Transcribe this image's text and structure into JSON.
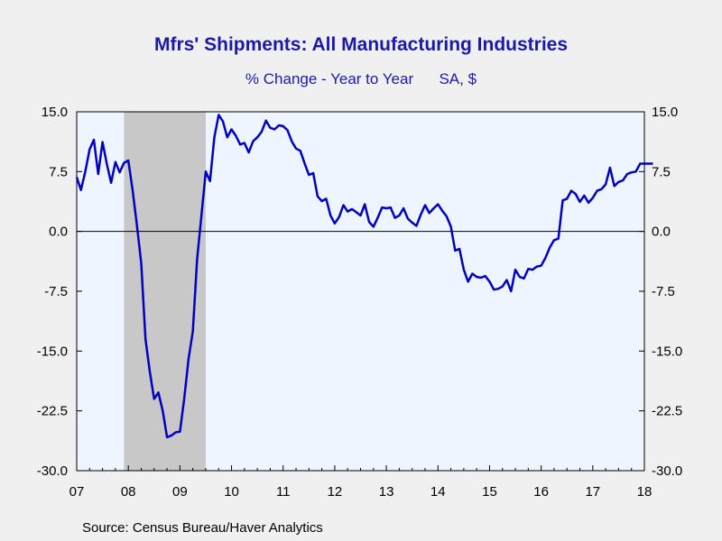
{
  "chart_data": {
    "type": "line",
    "title": "Mfrs' Shipments: All Manufacturing Industries",
    "subtitle_left": "% Change - Year to Year",
    "subtitle_right": "SA, $",
    "source": "Source:  Census Bureau/Haver Analytics",
    "ylim": [
      -30,
      15
    ],
    "yticks": [
      15,
      7.5,
      0,
      -7.5,
      -15,
      -22.5,
      -30
    ],
    "ytick_labels": [
      "15.0",
      "7.5",
      "0.0",
      "-7.5",
      "-15.0",
      "-22.5",
      "-30.0"
    ],
    "xlim": [
      2007,
      2018
    ],
    "xtick_labels": [
      "07",
      "08",
      "09",
      "10",
      "11",
      "12",
      "13",
      "14",
      "15",
      "16",
      "17",
      "18"
    ],
    "recession": {
      "start": 2007.917,
      "end": 2009.5
    },
    "series_color": "#0000c0",
    "x": [
      2007.0,
      2007.083,
      2007.167,
      2007.25,
      2007.333,
      2007.417,
      2007.5,
      2007.583,
      2007.667,
      2007.75,
      2007.833,
      2007.917,
      2008.0,
      2008.083,
      2008.167,
      2008.25,
      2008.333,
      2008.417,
      2008.5,
      2008.583,
      2008.667,
      2008.75,
      2008.833,
      2008.917,
      2009.0,
      2009.083,
      2009.167,
      2009.25,
      2009.333,
      2009.417,
      2009.5,
      2009.583,
      2009.667,
      2009.75,
      2009.833,
      2009.917,
      2010.0,
      2010.083,
      2010.167,
      2010.25,
      2010.333,
      2010.417,
      2010.5,
      2010.583,
      2010.667,
      2010.75,
      2010.833,
      2010.917,
      2011.0,
      2011.083,
      2011.167,
      2011.25,
      2011.333,
      2011.417,
      2011.5,
      2011.583,
      2011.667,
      2011.75,
      2011.833,
      2011.917,
      2012.0,
      2012.083,
      2012.167,
      2012.25,
      2012.333,
      2012.417,
      2012.5,
      2012.583,
      2012.667,
      2012.75,
      2012.833,
      2012.917,
      2013.0,
      2013.083,
      2013.167,
      2013.25,
      2013.333,
      2013.417,
      2013.5,
      2013.583,
      2013.667,
      2013.75,
      2013.833,
      2013.917,
      2014.0,
      2014.083,
      2014.167,
      2014.25,
      2014.333,
      2014.417,
      2014.5,
      2014.583,
      2014.667,
      2014.75,
      2014.833,
      2014.917,
      2015.0,
      2015.083,
      2015.167,
      2015.25,
      2015.333,
      2015.417,
      2015.5,
      2015.583,
      2015.667,
      2015.75,
      2015.833,
      2015.917,
      2016.0,
      2016.083,
      2016.167,
      2016.25,
      2016.333,
      2016.417,
      2016.5,
      2016.583,
      2016.667,
      2016.75,
      2016.833,
      2016.917,
      2017.0,
      2017.083,
      2017.167,
      2017.25,
      2017.333,
      2017.417,
      2017.5,
      2017.583,
      2017.667,
      2017.75,
      2017.833,
      2017.917,
      2018.0,
      2018.083,
      2018.167
    ],
    "values": [
      6.8,
      5.2,
      7.5,
      10.3,
      11.5,
      7.2,
      11.2,
      8.5,
      6.1,
      8.7,
      7.4,
      8.6,
      8.9,
      5.2,
      0.8,
      -4.0,
      -13.5,
      -17.6,
      -21.0,
      -20.2,
      -22.5,
      -25.8,
      -25.6,
      -25.2,
      -25.1,
      -21.0,
      -16.0,
      -12.5,
      -3.5,
      2.0,
      7.5,
      6.3,
      11.8,
      14.6,
      13.8,
      11.8,
      12.8,
      12.0,
      10.9,
      11.1,
      9.9,
      11.3,
      11.8,
      12.5,
      13.9,
      13.0,
      12.8,
      13.3,
      13.2,
      12.7,
      11.3,
      10.4,
      10.1,
      8.5,
      7.1,
      7.3,
      4.4,
      3.8,
      4.1,
      2.0,
      1.0,
      1.8,
      3.3,
      2.5,
      2.8,
      2.4,
      2.0,
      3.4,
      1.2,
      0.6,
      1.7,
      3.0,
      2.9,
      3.0,
      1.7,
      2.0,
      2.9,
      1.6,
      1.1,
      0.7,
      2.1,
      3.3,
      2.3,
      2.9,
      3.4,
      2.6,
      1.9,
      0.6,
      -2.4,
      -2.2,
      -4.8,
      -6.3,
      -5.3,
      -5.7,
      -5.8,
      -5.6,
      -6.3,
      -7.3,
      -7.2,
      -6.9,
      -6.1,
      -7.5,
      -4.8,
      -5.7,
      -5.9,
      -4.7,
      -4.8,
      -4.4,
      -4.3,
      -3.3,
      -2.0,
      -1.1,
      -0.9,
      3.9,
      4.1,
      5.1,
      4.7,
      3.7,
      4.5,
      3.6,
      4.2,
      5.1,
      5.3,
      5.9,
      8.0,
      5.7,
      6.2,
      6.4,
      7.2,
      7.4,
      7.5,
      8.5,
      8.5,
      8.5,
      8.5
    ]
  }
}
